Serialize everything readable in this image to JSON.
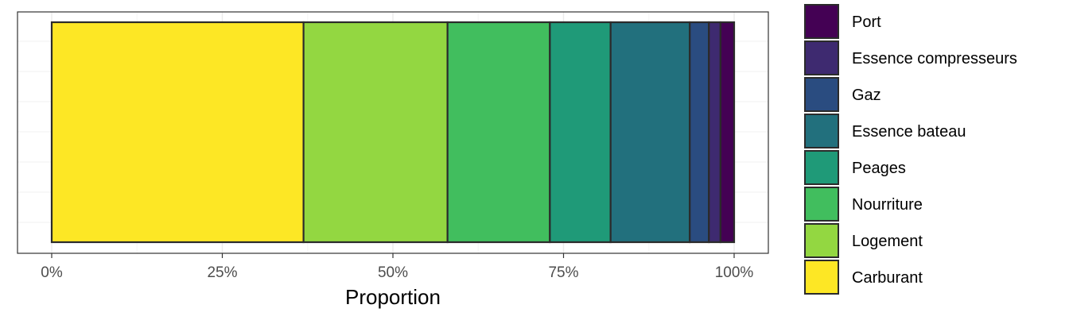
{
  "chart_data": {
    "type": "bar",
    "orientation": "horizontal",
    "stacked": true,
    "title": "",
    "xlabel": "Proportion",
    "ylabel": "",
    "xlim": [
      0,
      1
    ],
    "xticks": [
      0,
      0.25,
      0.5,
      0.75,
      1.0
    ],
    "xtick_labels": [
      "0%",
      "25%",
      "50%",
      "75%",
      "100%"
    ],
    "grid": true,
    "legend_position": "right",
    "series": [
      {
        "name": "Carburant",
        "value": 0.369,
        "color": "#FDE725"
      },
      {
        "name": "Logement",
        "value": 0.211,
        "color": "#93D741"
      },
      {
        "name": "Nourriture",
        "value": 0.15,
        "color": "#41BE5E"
      },
      {
        "name": "Peages",
        "value": 0.089,
        "color": "#1F9A78"
      },
      {
        "name": "Essence bateau",
        "value": 0.116,
        "color": "#22707D"
      },
      {
        "name": "Gaz",
        "value": 0.028,
        "color": "#2A4C80"
      },
      {
        "name": "Essence compresseurs",
        "value": 0.017,
        "color": "#3E2A70"
      },
      {
        "name": "Port",
        "value": 0.02,
        "color": "#440154"
      }
    ]
  }
}
